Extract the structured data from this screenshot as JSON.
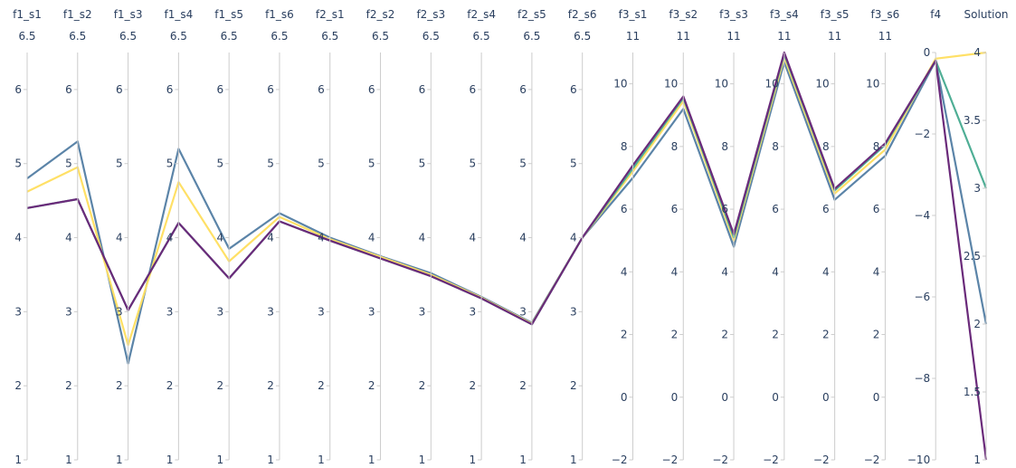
{
  "chart_data": {
    "type": "parallel_coordinates",
    "dimensions": [
      {
        "label": "f1_s1",
        "top_label": "6.5",
        "range": [
          1,
          6.5
        ],
        "ticks": [
          1,
          2,
          3,
          4,
          5,
          6
        ]
      },
      {
        "label": "f1_s2",
        "top_label": "6.5",
        "range": [
          1,
          6.5
        ],
        "ticks": [
          1,
          2,
          3,
          4,
          5,
          6
        ]
      },
      {
        "label": "f1_s3",
        "top_label": "6.5",
        "range": [
          1,
          6.5
        ],
        "ticks": [
          1,
          2,
          3,
          4,
          5,
          6
        ]
      },
      {
        "label": "f1_s4",
        "top_label": "6.5",
        "range": [
          1,
          6.5
        ],
        "ticks": [
          1,
          2,
          3,
          4,
          5,
          6
        ]
      },
      {
        "label": "f1_s5",
        "top_label": "6.5",
        "range": [
          1,
          6.5
        ],
        "ticks": [
          1,
          2,
          3,
          4,
          5,
          6
        ]
      },
      {
        "label": "f1_s6",
        "top_label": "6.5",
        "range": [
          1,
          6.5
        ],
        "ticks": [
          1,
          2,
          3,
          4,
          5,
          6
        ]
      },
      {
        "label": "f2_s1",
        "top_label": "6.5",
        "range": [
          1,
          6.5
        ],
        "ticks": [
          1,
          2,
          3,
          4,
          5,
          6
        ]
      },
      {
        "label": "f2_s2",
        "top_label": "6.5",
        "range": [
          1,
          6.5
        ],
        "ticks": [
          1,
          2,
          3,
          4,
          5,
          6
        ]
      },
      {
        "label": "f2_s3",
        "top_label": "6.5",
        "range": [
          1,
          6.5
        ],
        "ticks": [
          1,
          2,
          3,
          4,
          5,
          6
        ]
      },
      {
        "label": "f2_s4",
        "top_label": "6.5",
        "range": [
          1,
          6.5
        ],
        "ticks": [
          1,
          2,
          3,
          4,
          5,
          6
        ]
      },
      {
        "label": "f2_s5",
        "top_label": "6.5",
        "range": [
          1,
          6.5
        ],
        "ticks": [
          1,
          2,
          3,
          4,
          5,
          6
        ]
      },
      {
        "label": "f2_s6",
        "top_label": "6.5",
        "range": [
          1,
          6.5
        ],
        "ticks": [
          1,
          2,
          3,
          4,
          5,
          6
        ]
      },
      {
        "label": "f3_s1",
        "top_label": "11",
        "range": [
          -2,
          11
        ],
        "ticks": [
          -2,
          0,
          2,
          4,
          6,
          8,
          10
        ]
      },
      {
        "label": "f3_s2",
        "top_label": "11",
        "range": [
          -2,
          11
        ],
        "ticks": [
          -2,
          0,
          2,
          4,
          6,
          8,
          10
        ]
      },
      {
        "label": "f3_s3",
        "top_label": "11",
        "range": [
          -2,
          11
        ],
        "ticks": [
          -2,
          0,
          2,
          4,
          6,
          8,
          10
        ]
      },
      {
        "label": "f3_s4",
        "top_label": "11",
        "range": [
          -2,
          11
        ],
        "ticks": [
          -2,
          0,
          2,
          4,
          6,
          8,
          10
        ]
      },
      {
        "label": "f3_s5",
        "top_label": "11",
        "range": [
          -2,
          11
        ],
        "ticks": [
          -2,
          0,
          2,
          4,
          6,
          8,
          10
        ]
      },
      {
        "label": "f3_s6",
        "top_label": "11",
        "range": [
          -2,
          11
        ],
        "ticks": [
          -2,
          0,
          2,
          4,
          6,
          8,
          10
        ]
      },
      {
        "label": "f4",
        "top_label": "",
        "range": [
          -10,
          0
        ],
        "ticks": [
          -10,
          -8,
          -6,
          -4,
          -2,
          0
        ]
      },
      {
        "label": "Solution",
        "top_label": "",
        "range": [
          1,
          4
        ],
        "ticks": [
          1,
          1.5,
          2,
          2.5,
          3,
          3.5,
          4
        ]
      }
    ],
    "series": [
      {
        "color": "#5b84a8",
        "values": [
          4.8,
          5.3,
          2.3,
          5.2,
          3.85,
          4.33,
          4.0,
          3.75,
          3.52,
          3.2,
          2.85,
          4.0,
          7.0,
          9.2,
          4.8,
          10.7,
          6.3,
          7.7,
          -0.2,
          2.0
        ]
      },
      {
        "color": "#ffe066",
        "values": [
          4.62,
          4.95,
          2.55,
          4.75,
          3.68,
          4.28,
          3.98,
          3.74,
          3.5,
          3.19,
          2.84,
          4.0,
          7.2,
          9.45,
          5.0,
          10.85,
          6.5,
          7.9,
          -0.15,
          4.0
        ]
      },
      {
        "color": "#4fae95",
        "values": [
          4.4,
          4.52,
          3.02,
          4.2,
          3.45,
          4.22,
          3.96,
          3.72,
          3.48,
          3.18,
          2.83,
          4.0,
          7.3,
          9.55,
          5.1,
          10.95,
          6.6,
          8.05,
          -0.2,
          3.0
        ]
      },
      {
        "color": "#6a2a7a",
        "values": [
          4.4,
          4.52,
          3.02,
          4.2,
          3.45,
          4.22,
          3.96,
          3.72,
          3.48,
          3.18,
          2.83,
          4.0,
          7.4,
          9.6,
          5.2,
          11.0,
          6.65,
          8.1,
          -0.2,
          1.0
        ]
      }
    ]
  }
}
